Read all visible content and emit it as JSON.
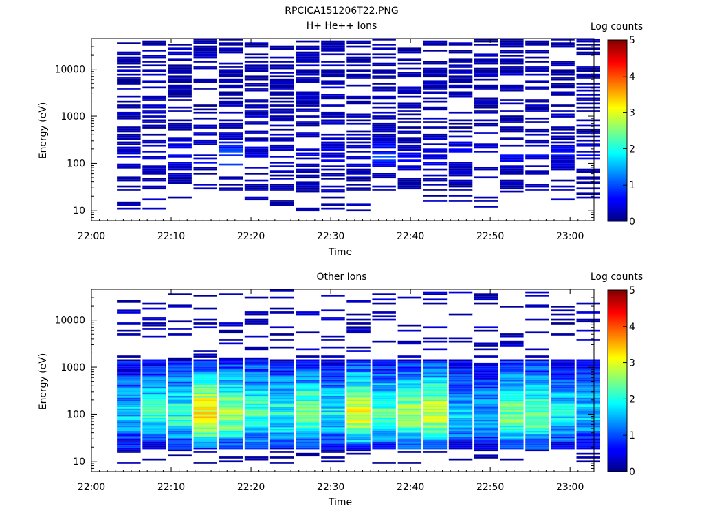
{
  "figure_title": "RPCICA151206T22.PNG",
  "chart_data": [
    {
      "type": "heatmap",
      "title": "H+ He++ Ions",
      "xlabel": "Time",
      "ylabel": "Energy (eV)",
      "colorbar_label": "Log counts",
      "y_scale": "log",
      "xlim": [
        "22:00",
        "23:03"
      ],
      "ylim": [
        6,
        45000
      ],
      "x_ticks": [
        "22:00",
        "22:10",
        "22:20",
        "22:30",
        "22:40",
        "22:50",
        "23:00"
      ],
      "y_ticks": [
        "10",
        "100",
        "1000",
        "10000"
      ],
      "colorbar_range": [
        0,
        5
      ],
      "colorbar_ticks": [
        "0",
        "1",
        "2",
        "3",
        "4",
        "5"
      ],
      "colormap": "jet",
      "time_bins": [
        "22:03:12",
        "22:06:24",
        "22:09:36",
        "22:12:48",
        "22:16:00",
        "22:19:12",
        "22:22:24",
        "22:25:36",
        "22:28:48",
        "22:32:00",
        "22:35:12",
        "22:38:24",
        "22:41:36",
        "22:44:48",
        "22:48:00",
        "22:51:12",
        "22:54:24",
        "22:57:36",
        "23:00:48"
      ],
      "energy_low_ev": 8,
      "energy_high_ev": 45000,
      "energy_channels": 96,
      "profile": "sparse",
      "peak_energy_ev": 150,
      "peak_levels": [
        0.3,
        0.3,
        0.3,
        0.3,
        0.8,
        0.3,
        0.3,
        0.3,
        0.3,
        0.3,
        0.6,
        0.3,
        0.3,
        0.3,
        0.3,
        0.3,
        0.3,
        0.3,
        0.3
      ],
      "seed": 11
    },
    {
      "type": "heatmap",
      "title": "Other Ions",
      "xlabel": "Time",
      "ylabel": "Energy (eV)",
      "colorbar_label": "Log counts",
      "y_scale": "log",
      "xlim": [
        "22:00",
        "23:03"
      ],
      "ylim": [
        6,
        45000
      ],
      "x_ticks": [
        "22:00",
        "22:10",
        "22:20",
        "22:30",
        "22:40",
        "22:50",
        "23:00"
      ],
      "y_ticks": [
        "10",
        "100",
        "1000",
        "10000"
      ],
      "colorbar_range": [
        0,
        5
      ],
      "colorbar_ticks": [
        "0",
        "1",
        "2",
        "3",
        "4",
        "5"
      ],
      "colormap": "jet",
      "time_bins": [
        "22:03:12",
        "22:06:24",
        "22:09:36",
        "22:12:48",
        "22:16:00",
        "22:19:12",
        "22:22:24",
        "22:25:36",
        "22:28:48",
        "22:32:00",
        "22:35:12",
        "22:38:24",
        "22:41:36",
        "22:44:48",
        "22:48:00",
        "22:51:12",
        "22:54:24",
        "22:57:36",
        "23:00:48"
      ],
      "energy_low_ev": 8,
      "energy_high_ev": 45000,
      "energy_channels": 96,
      "profile": "dense",
      "peak_energy_ev": 90,
      "peak_levels": [
        1.6,
        2.0,
        2.0,
        3.2,
        2.6,
        2.2,
        2.0,
        2.4,
        1.8,
        3.0,
        2.2,
        2.6,
        2.8,
        1.6,
        1.4,
        2.4,
        2.4,
        1.8,
        1.6
      ],
      "seed": 29
    }
  ]
}
